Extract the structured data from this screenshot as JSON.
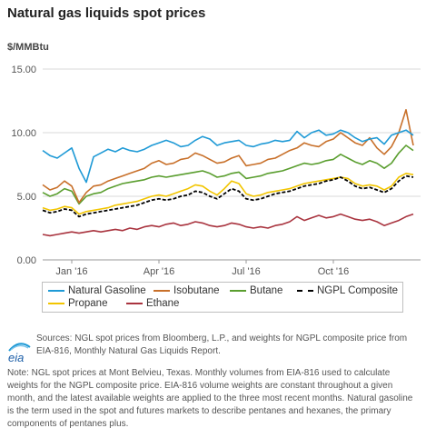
{
  "title": "Natural gas liquids spot prices",
  "unit_label": "$/MMBtu",
  "colors": {
    "Natural Gasoline": "#1f9ad6",
    "Isobutane": "#c8702a",
    "Butane": "#5a9e2f",
    "NGPL Composite": "#000000",
    "Propane": "#f2c500",
    "Ethane": "#a9343f"
  },
  "chart_data": {
    "type": "line",
    "title": "Natural gas liquids spot prices",
    "ylabel": "$/MMBtu",
    "ylim": [
      0,
      15
    ],
    "yticks": [
      0,
      5,
      10,
      15
    ],
    "ytick_labels": [
      "0.00",
      "5.00",
      "10.00",
      "15.00"
    ],
    "xlim": [
      0,
      13
    ],
    "xticks": [
      1,
      4,
      7,
      10
    ],
    "xtick_labels": [
      "Jan '16",
      "Apr '16",
      "Jul '16",
      "Oct '16"
    ],
    "x_unit": "months since December 2015",
    "grid": "horizontal",
    "legend_position": "bottom",
    "x": [
      0,
      0.25,
      0.5,
      0.75,
      1,
      1.25,
      1.5,
      1.75,
      2,
      2.25,
      2.5,
      2.75,
      3,
      3.25,
      3.5,
      3.75,
      4,
      4.25,
      4.5,
      4.75,
      5,
      5.25,
      5.5,
      5.75,
      6,
      6.25,
      6.5,
      6.75,
      7,
      7.25,
      7.5,
      7.75,
      8,
      8.25,
      8.5,
      8.75,
      9,
      9.25,
      9.5,
      9.75,
      10,
      10.25,
      10.5,
      10.75,
      11,
      11.25,
      11.5,
      11.75,
      12,
      12.25,
      12.5,
      12.75
    ],
    "series": [
      {
        "name": "Natural Gasoline",
        "values": [
          8.6,
          8.2,
          8.0,
          8.4,
          8.8,
          7.2,
          6.1,
          8.1,
          8.4,
          8.7,
          8.5,
          8.8,
          8.6,
          8.5,
          8.7,
          9.0,
          9.2,
          9.4,
          9.2,
          8.9,
          9.0,
          9.4,
          9.7,
          9.5,
          9.0,
          9.2,
          9.3,
          9.4,
          9.0,
          8.9,
          9.1,
          9.2,
          9.4,
          9.3,
          9.4,
          10.1,
          9.6,
          10.0,
          10.2,
          9.8,
          9.9,
          10.2,
          10.0,
          9.6,
          9.3,
          9.5,
          9.6,
          9.1,
          9.8,
          10.0,
          10.2,
          9.8
        ]
      },
      {
        "name": "Isobutane",
        "values": [
          5.9,
          5.5,
          5.7,
          6.2,
          5.8,
          4.5,
          5.3,
          5.8,
          5.9,
          6.2,
          6.4,
          6.6,
          6.8,
          7.0,
          7.2,
          7.6,
          7.8,
          7.5,
          7.6,
          7.9,
          8.0,
          8.4,
          8.2,
          7.9,
          7.6,
          7.7,
          8.0,
          8.2,
          7.4,
          7.5,
          7.6,
          7.9,
          8.0,
          8.3,
          8.6,
          8.8,
          9.2,
          9.0,
          8.9,
          9.3,
          9.5,
          10.0,
          9.6,
          9.2,
          9.0,
          9.6,
          8.8,
          8.3,
          8.9,
          10.0,
          11.8,
          9.0
        ]
      },
      {
        "name": "Butane",
        "values": [
          5.3,
          5.0,
          5.2,
          5.6,
          5.4,
          4.4,
          5.0,
          5.2,
          5.3,
          5.6,
          5.8,
          6.0,
          6.1,
          6.2,
          6.3,
          6.5,
          6.6,
          6.5,
          6.6,
          6.7,
          6.8,
          6.9,
          7.0,
          6.8,
          6.5,
          6.6,
          6.8,
          6.9,
          6.4,
          6.5,
          6.6,
          6.8,
          6.9,
          7.0,
          7.2,
          7.4,
          7.6,
          7.5,
          7.6,
          7.8,
          7.9,
          8.3,
          8.0,
          7.7,
          7.5,
          7.8,
          7.6,
          7.2,
          7.6,
          8.4,
          9.0,
          8.6
        ]
      },
      {
        "name": "NGPL Composite",
        "values": [
          3.9,
          3.7,
          3.8,
          4.0,
          3.9,
          3.4,
          3.6,
          3.7,
          3.8,
          3.9,
          4.0,
          4.1,
          4.2,
          4.3,
          4.5,
          4.7,
          4.8,
          4.7,
          4.8,
          5.0,
          5.1,
          5.4,
          5.3,
          5.0,
          4.8,
          5.2,
          5.6,
          5.4,
          4.8,
          4.7,
          4.8,
          5.0,
          5.2,
          5.3,
          5.4,
          5.6,
          5.8,
          5.9,
          6.0,
          6.2,
          6.3,
          6.5,
          6.2,
          5.8,
          5.6,
          5.7,
          5.5,
          5.3,
          5.6,
          6.2,
          6.6,
          6.5
        ]
      },
      {
        "name": "Propane",
        "values": [
          4.1,
          3.9,
          4.0,
          4.2,
          4.1,
          3.6,
          3.8,
          3.9,
          4.0,
          4.1,
          4.3,
          4.4,
          4.5,
          4.6,
          4.8,
          5.0,
          5.1,
          5.0,
          5.2,
          5.4,
          5.6,
          5.9,
          5.8,
          5.4,
          5.1,
          5.6,
          6.2,
          6.0,
          5.2,
          5.0,
          5.1,
          5.3,
          5.4,
          5.5,
          5.6,
          5.8,
          6.0,
          6.1,
          6.2,
          6.3,
          6.4,
          6.5,
          6.4,
          6.0,
          5.8,
          5.9,
          5.8,
          5.5,
          5.8,
          6.5,
          6.8,
          6.7
        ]
      },
      {
        "name": "Ethane",
        "values": [
          2.0,
          1.9,
          2.0,
          2.1,
          2.2,
          2.1,
          2.2,
          2.3,
          2.2,
          2.3,
          2.4,
          2.3,
          2.5,
          2.4,
          2.6,
          2.7,
          2.6,
          2.8,
          2.9,
          2.7,
          2.8,
          3.0,
          2.9,
          2.7,
          2.6,
          2.7,
          2.9,
          2.8,
          2.6,
          2.5,
          2.6,
          2.5,
          2.7,
          2.8,
          3.0,
          3.4,
          3.1,
          3.3,
          3.5,
          3.3,
          3.4,
          3.6,
          3.4,
          3.2,
          3.1,
          3.2,
          3.0,
          2.7,
          2.9,
          3.1,
          3.4,
          3.6
        ]
      }
    ]
  },
  "legend": {
    "items": [
      {
        "label": "Natural Gasoline"
      },
      {
        "label": "Isobutane"
      },
      {
        "label": "Butane"
      },
      {
        "label": "NGPL Composite"
      },
      {
        "label": "Propane"
      },
      {
        "label": "Ethane"
      }
    ]
  },
  "footer": {
    "logo_text": "eia",
    "sources": "Sources: NGL spot prices from Bloomberg, L.P., and weights for NGPL composite price from EIA-816, Monthly Natural Gas Liquids Report.",
    "note": "Note: NGL spot prices at Mont Belvieu, Texas. Monthly volumes from EIA-816 used to calculate weights for the NGPL composite price. EIA-816 volume weights are constant throughout a given month, and the latest available weights are applied to the three most recent months. Natural gasoline is the term used in the spot and futures markets to describe pentanes and hexanes, the primary components of pentanes plus."
  }
}
